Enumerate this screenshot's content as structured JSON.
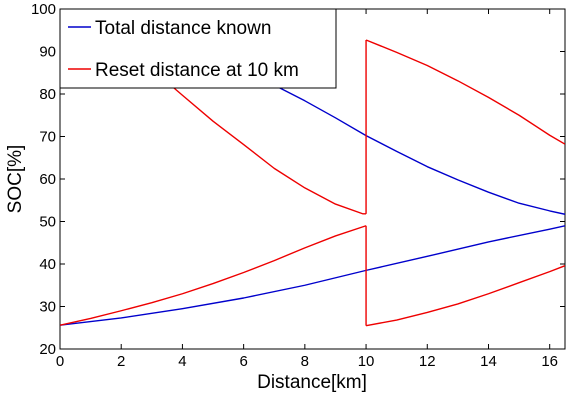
{
  "chart_data": {
    "type": "line",
    "title": "",
    "xlabel": "Distance[km]",
    "ylabel": "SOC[%]",
    "xlim": [
      0,
      16.5
    ],
    "ylim": [
      20,
      100
    ],
    "xticks": [
      0,
      2,
      4,
      6,
      8,
      10,
      12,
      14,
      16
    ],
    "yticks": [
      20,
      30,
      40,
      50,
      60,
      70,
      80,
      90,
      100
    ],
    "grid": false,
    "legend_position": "top-left",
    "series": [
      {
        "name": "Total distance known",
        "color": "#0000cc",
        "curves": [
          [
            [
              0,
              100
            ],
            [
              1,
              98.1
            ],
            [
              2,
              96.0
            ],
            [
              3,
              93.7
            ],
            [
              4,
              91.2
            ],
            [
              5,
              88.4
            ],
            [
              6,
              85.4
            ],
            [
              7,
              82.1
            ],
            [
              8,
              78.4
            ],
            [
              9,
              74.4
            ],
            [
              10,
              70.2
            ],
            [
              11,
              66.5
            ],
            [
              12,
              62.9
            ],
            [
              13,
              59.8
            ],
            [
              14,
              56.9
            ],
            [
              15,
              54.3
            ],
            [
              16,
              52.5
            ],
            [
              16.5,
              51.7
            ]
          ],
          [
            [
              0,
              25.6
            ],
            [
              2,
              27.3
            ],
            [
              4,
              29.5
            ],
            [
              6,
              32.0
            ],
            [
              8,
              35.0
            ],
            [
              10,
              38.5
            ],
            [
              12,
              41.8
            ],
            [
              14,
              45.2
            ],
            [
              16,
              48.2
            ],
            [
              16.5,
              49.0
            ]
          ]
        ]
      },
      {
        "name": "Reset distance at 10 km",
        "color": "#ee0000",
        "curves": [
          [
            [
              0,
              100
            ],
            [
              1,
              96.0
            ],
            [
              2,
              91.3
            ],
            [
              3,
              85.9
            ],
            [
              4,
              79.7
            ],
            [
              5,
              73.6
            ],
            [
              6,
              68.1
            ],
            [
              7,
              62.5
            ],
            [
              8,
              57.9
            ],
            [
              9,
              54.1
            ],
            [
              9.9,
              51.8
            ],
            [
              10,
              51.8
            ]
          ],
          [
            [
              10,
              51.8
            ],
            [
              10,
              92.7
            ]
          ],
          [
            [
              10,
              92.7
            ],
            [
              11,
              89.8
            ],
            [
              12,
              86.7
            ],
            [
              13,
              83.1
            ],
            [
              14,
              79.2
            ],
            [
              15,
              75.0
            ],
            [
              16,
              70.3
            ],
            [
              16.5,
              68.2
            ]
          ],
          [
            [
              0,
              25.6
            ],
            [
              1,
              27.2
            ],
            [
              2,
              29.0
            ],
            [
              3,
              30.9
            ],
            [
              4,
              33.0
            ],
            [
              5,
              35.4
            ],
            [
              6,
              38.0
            ],
            [
              7,
              40.8
            ],
            [
              8,
              43.8
            ],
            [
              9,
              46.6
            ],
            [
              10,
              49.0
            ]
          ],
          [
            [
              10,
              49.0
            ],
            [
              10,
              25.5
            ]
          ],
          [
            [
              10,
              25.5
            ],
            [
              11,
              26.8
            ],
            [
              12,
              28.6
            ],
            [
              13,
              30.6
            ],
            [
              14,
              33.0
            ],
            [
              15,
              35.6
            ],
            [
              16,
              38.2
            ],
            [
              16.5,
              39.6
            ]
          ]
        ]
      }
    ]
  }
}
